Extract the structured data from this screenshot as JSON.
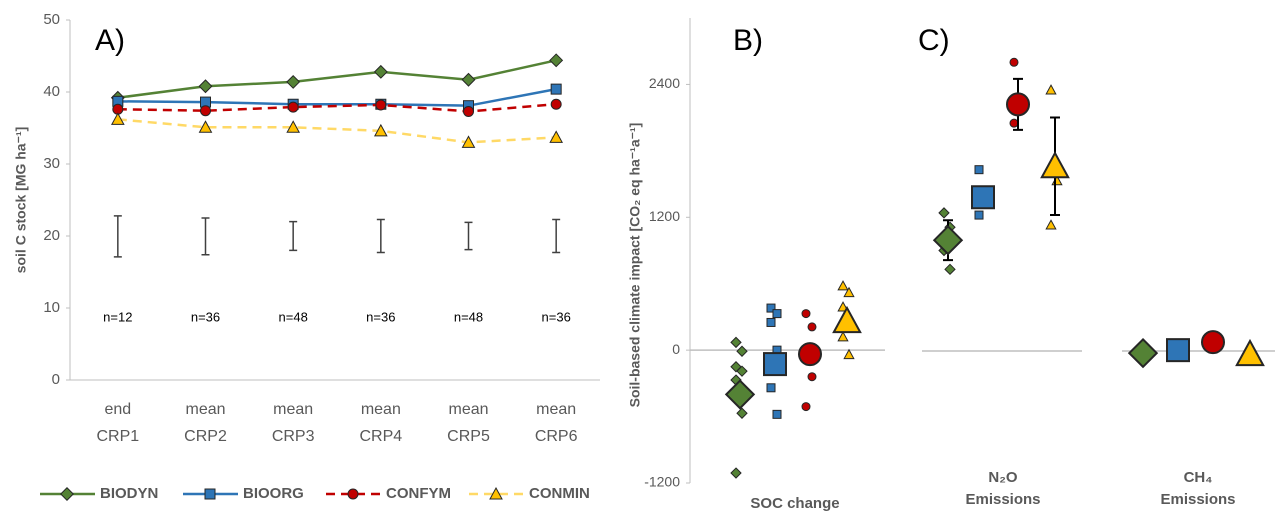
{
  "chart_data": [
    {
      "type": "line",
      "label": "A)",
      "ylabel": "soil C stock [MG ha⁻¹]",
      "categories": [
        [
          "end",
          "CRP1"
        ],
        [
          "mean",
          "CRP2"
        ],
        [
          "mean",
          "CRP3"
        ],
        [
          "mean",
          "CRP4"
        ],
        [
          "mean",
          "CRP5"
        ],
        [
          "mean",
          "CRP6"
        ]
      ],
      "ylim": [
        0,
        50
      ],
      "yticks": [
        0,
        10,
        20,
        30,
        40,
        50
      ],
      "series": [
        {
          "name": "BIODYN",
          "color": "#548235",
          "marker": "diamond",
          "dash": false,
          "values": [
            39.2,
            40.8,
            41.4,
            42.8,
            41.7,
            44.4
          ]
        },
        {
          "name": "BIOORG",
          "color": "#2e75b6",
          "marker": "square",
          "dash": false,
          "values": [
            38.7,
            38.6,
            38.3,
            38.3,
            38.1,
            40.4
          ]
        },
        {
          "name": "CONFYM",
          "color": "#c00000",
          "marker": "circle",
          "dash": true,
          "values": [
            37.6,
            37.4,
            37.9,
            38.2,
            37.3,
            38.3
          ]
        },
        {
          "name": "CONMIN",
          "color": "#ffc000",
          "marker": "triangle",
          "dash": true,
          "values": [
            36.2,
            35.1,
            35.1,
            34.6,
            33.0,
            33.7
          ]
        }
      ],
      "error_bars": {
        "low": [
          17.1,
          17.4,
          18.0,
          17.7,
          18.1,
          17.7
        ],
        "high": [
          22.8,
          22.5,
          22.0,
          22.3,
          21.9,
          22.3
        ]
      },
      "annotations": [
        "n=12",
        "n=36",
        "n=48",
        "n=36",
        "n=48",
        "n=36"
      ],
      "legend": "bottom"
    },
    {
      "type": "scatter",
      "labels": [
        "B)",
        "C)"
      ],
      "ylabel": "Soil-based climate impact [CO₂ eq ha⁻¹a⁻¹]",
      "categories": [
        [
          "SOC change"
        ],
        [
          "N₂O",
          "Emissions"
        ],
        [
          "CH₄",
          "Emissions"
        ]
      ],
      "ylim": [
        -1200,
        3000
      ],
      "yticks": [
        -1200,
        0,
        1200,
        2400
      ],
      "series": [
        {
          "color": "#548235",
          "marker": "diamond",
          "values": [
            -400,
            993,
            -27
          ],
          "errors": [
            null,
            180,
            null
          ],
          "points": [
            [
              70,
              -10,
              -150,
              -190,
              -270,
              -570,
              -1110
            ],
            [
              1240,
              1110,
              900,
              730
            ],
            []
          ]
        },
        {
          "color": "#2e75b6",
          "marker": "square",
          "values": [
            -126,
            1381,
            0
          ],
          "errors": [
            null,
            80,
            null
          ],
          "points": [
            [
              380,
              330,
              250,
              0,
              -340,
              -580
            ],
            [
              1630,
              1340,
              1220
            ],
            []
          ]
        },
        {
          "color": "#c00000",
          "marker": "circle",
          "values": [
            -36,
            2220,
            72
          ],
          "errors": [
            null,
            230,
            null
          ],
          "points": [
            [
              330,
              210,
              -80,
              -240,
              -510
            ],
            [
              2600,
              2200,
              2050
            ],
            []
          ]
        },
        {
          "color": "#ffc000",
          "marker": "triangle",
          "values": [
            262,
            1661,
            -36
          ],
          "errors": [
            null,
            440,
            null
          ],
          "points": [
            [
              580,
              520,
              390,
              300,
              120,
              -40
            ],
            [
              2350,
              1530,
              1130
            ],
            []
          ]
        }
      ]
    }
  ]
}
